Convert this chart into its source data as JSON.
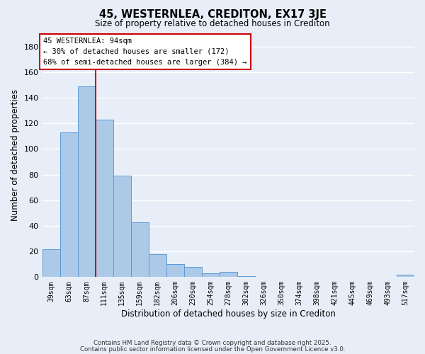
{
  "title": "45, WESTERNLEA, CREDITON, EX17 3JE",
  "subtitle": "Size of property relative to detached houses in Crediton",
  "xlabel": "Distribution of detached houses by size in Crediton",
  "ylabel": "Number of detached properties",
  "bar_labels": [
    "39sqm",
    "63sqm",
    "87sqm",
    "111sqm",
    "135sqm",
    "159sqm",
    "182sqm",
    "206sqm",
    "230sqm",
    "254sqm",
    "278sqm",
    "302sqm",
    "326sqm",
    "350sqm",
    "374sqm",
    "398sqm",
    "421sqm",
    "445sqm",
    "469sqm",
    "493sqm",
    "517sqm"
  ],
  "bar_values": [
    22,
    113,
    149,
    123,
    79,
    43,
    18,
    10,
    8,
    3,
    4,
    1,
    0,
    0,
    0,
    0,
    0,
    0,
    0,
    0,
    2
  ],
  "bar_color": "#adc9e8",
  "bar_edge_color": "#5b9bd5",
  "vline_color": "#cc0000",
  "vline_x_index": 2,
  "ylim": [
    0,
    190
  ],
  "yticks": [
    0,
    20,
    40,
    60,
    80,
    100,
    120,
    140,
    160,
    180
  ],
  "annotation_title": "45 WESTERNLEA: 94sqm",
  "annotation_line1": "← 30% of detached houses are smaller (172)",
  "annotation_line2": "68% of semi-detached houses are larger (384) →",
  "footer1": "Contains HM Land Registry data © Crown copyright and database right 2025.",
  "footer2": "Contains public sector information licensed under the Open Government Licence v3.0.",
  "background_color": "#e8eef8",
  "grid_color": "#ffffff"
}
